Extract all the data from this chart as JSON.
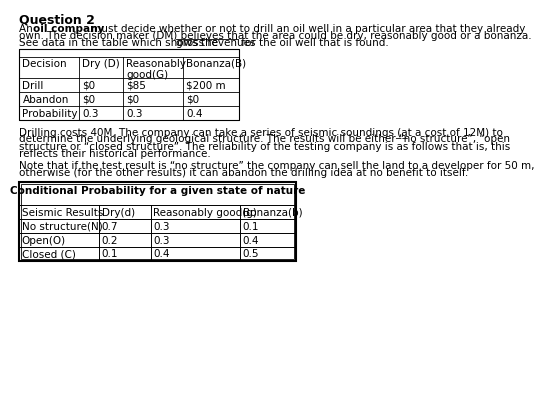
{
  "title": "Question 2",
  "table1_headers": [
    "Decision",
    "Dry (D)",
    "Reasonably\ngood(G)",
    "Bonanza(B)"
  ],
  "table1_rows": [
    [
      "Drill",
      "$0",
      "$85",
      "$200 m"
    ],
    [
      "Abandon",
      "$0",
      "$0",
      "$0"
    ],
    [
      "Probability",
      "0.3",
      "0.3",
      "0.4"
    ]
  ],
  "p2_lines": [
    "Drilling costs 40M. The company can take a series of seismic soundings (̲a̲t a cost of 12M) to",
    "determine the underlying geological structure. The results will be either “no structure”, “open",
    "structure or “closed structure”. The reliability of the testing company is as follows that is, this",
    "reflects their historical performance."
  ],
  "p3_lines": [
    "Note that if the test result is “no structure” the company can sell the land to a developer for 50 m,",
    "otherwise (for the other results) it can abandon the drilling idea at no benefit to itself."
  ],
  "table2_title": "Conditional Probability for a given state of nature",
  "table2_headers": [
    "Seismic Results",
    "Dry(d)",
    "Reasonably good(g)",
    "Bonanza(b)"
  ],
  "table2_rows": [
    [
      "No structure(N)",
      "0.7",
      "0.3",
      "0.1"
    ],
    [
      "Open(O)",
      "0.2",
      "0.3",
      "0.4"
    ],
    [
      "Closed (C)",
      "0.1",
      "0.4",
      "0.5"
    ]
  ],
  "bg_color": "#ffffff",
  "font_size": 7.5,
  "title_font_size": 9,
  "line1_plain": "An ",
  "line1_bold": "oil company",
  "line1_rest": " must decide whether or not to drill an oil well in a particular area that they already",
  "line2": "own. The decision maker (DM) believes that the area could be dry, reasonably good or a bonanza.",
  "line3_pre": "See data in the table which shows the ",
  "line3_underline": "gross revenues",
  "line3_post": " for the oil well that is found."
}
